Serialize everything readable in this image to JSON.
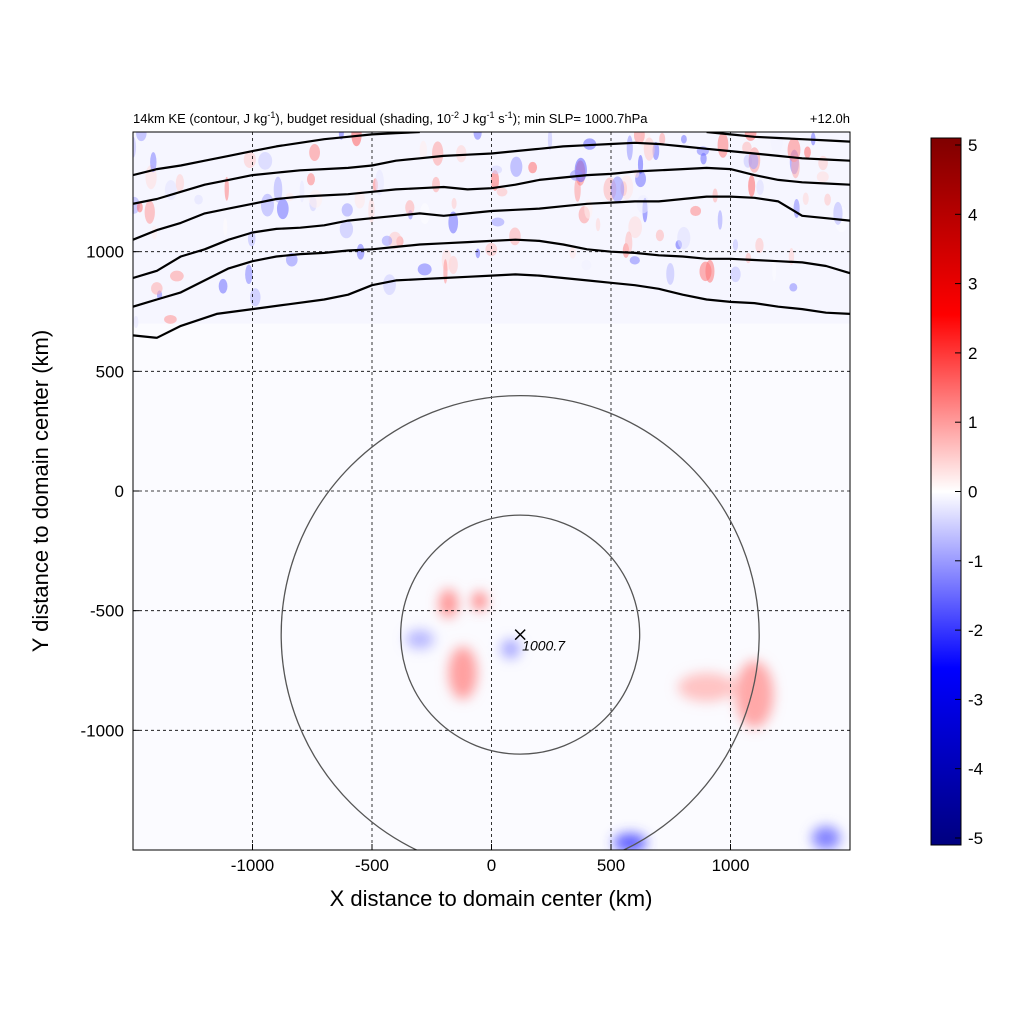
{
  "chart_data": {
    "type": "heatmap",
    "title_parts": {
      "p1": "14km KE (contour, J kg",
      "p1_sup": "-1",
      "p2": "), budget residual (shading, 10",
      "p2_sup": "-2",
      "p3": " J kg",
      "p3_sup": "-1",
      "p4": " s",
      "p4_sup": "-1",
      "p5": "); min SLP= 1000.7hPa"
    },
    "time_label": "+12.0h",
    "xlabel": "X distance to domain center (km)",
    "ylabel": "Y distance to domain center (km)",
    "xlim": [
      -1500,
      1500
    ],
    "ylim": [
      -1500,
      1500
    ],
    "xticks": [
      -1000,
      -500,
      0,
      500,
      1000
    ],
    "yticks": [
      -1000,
      -500,
      0,
      500,
      1000
    ],
    "grid": true,
    "colorbar": {
      "range": [
        -5,
        5
      ],
      "ticks": [
        5,
        4,
        3,
        2,
        1,
        0,
        -1,
        -2,
        -3,
        -4,
        -5
      ],
      "colormap": "blue-white-red",
      "colors": {
        "min": "#00007f",
        "low": "#0000ff",
        "mid": "#ffffff",
        "high": "#ff0000",
        "max": "#7f0000"
      }
    },
    "storm_center": {
      "x": 120,
      "y": -600,
      "min_slp_label": "1000.7"
    },
    "range_rings_km": [
      500,
      1000
    ],
    "ke_contours": [
      {
        "level": 1,
        "points": [
          [
            -1500,
            650
          ],
          [
            -1400,
            640
          ],
          [
            -1300,
            690
          ],
          [
            -1150,
            740
          ],
          [
            -1000,
            760
          ],
          [
            -850,
            780
          ],
          [
            -700,
            800
          ],
          [
            -600,
            820
          ],
          [
            -500,
            860
          ],
          [
            -400,
            880
          ],
          [
            -300,
            885
          ],
          [
            -200,
            890
          ],
          [
            -100,
            895
          ],
          [
            0,
            900
          ],
          [
            100,
            905
          ],
          [
            200,
            900
          ],
          [
            300,
            890
          ],
          [
            400,
            880
          ],
          [
            500,
            870
          ],
          [
            600,
            860
          ],
          [
            700,
            845
          ],
          [
            800,
            820
          ],
          [
            900,
            800
          ],
          [
            1000,
            790
          ],
          [
            1100,
            785
          ],
          [
            1200,
            770
          ],
          [
            1300,
            760
          ],
          [
            1400,
            745
          ],
          [
            1500,
            740
          ]
        ]
      },
      {
        "level": 2,
        "points": [
          [
            -1500,
            770
          ],
          [
            -1400,
            800
          ],
          [
            -1300,
            830
          ],
          [
            -1200,
            880
          ],
          [
            -1100,
            930
          ],
          [
            -1000,
            960
          ],
          [
            -900,
            980
          ],
          [
            -800,
            990
          ],
          [
            -700,
            995
          ],
          [
            -600,
            1005
          ],
          [
            -500,
            1010
          ],
          [
            -400,
            1020
          ],
          [
            -300,
            1030
          ],
          [
            -200,
            1035
          ],
          [
            -100,
            1040
          ],
          [
            0,
            1045
          ],
          [
            100,
            1050
          ],
          [
            200,
            1045
          ],
          [
            300,
            1030
          ],
          [
            400,
            1010
          ],
          [
            500,
            1000
          ],
          [
            600,
            995
          ],
          [
            700,
            985
          ],
          [
            800,
            980
          ],
          [
            900,
            970
          ],
          [
            1000,
            970
          ],
          [
            1100,
            965
          ],
          [
            1200,
            960
          ],
          [
            1300,
            955
          ],
          [
            1400,
            940
          ],
          [
            1500,
            910
          ]
        ]
      },
      {
        "level": 3,
        "points": [
          [
            -1500,
            890
          ],
          [
            -1400,
            920
          ],
          [
            -1300,
            980
          ],
          [
            -1200,
            1010
          ],
          [
            -1100,
            1050
          ],
          [
            -1000,
            1080
          ],
          [
            -900,
            1095
          ],
          [
            -800,
            1100
          ],
          [
            -700,
            1110
          ],
          [
            -600,
            1130
          ],
          [
            -500,
            1140
          ],
          [
            -400,
            1150
          ],
          [
            -300,
            1160
          ],
          [
            -200,
            1150
          ],
          [
            -100,
            1160
          ],
          [
            0,
            1170
          ],
          [
            100,
            1175
          ],
          [
            200,
            1180
          ],
          [
            300,
            1190
          ],
          [
            400,
            1200
          ],
          [
            500,
            1205
          ],
          [
            600,
            1210
          ],
          [
            700,
            1210
          ],
          [
            800,
            1220
          ],
          [
            900,
            1230
          ],
          [
            1000,
            1230
          ],
          [
            1100,
            1225
          ],
          [
            1200,
            1210
          ],
          [
            1300,
            1150
          ],
          [
            1400,
            1140
          ],
          [
            1500,
            1130
          ]
        ]
      },
      {
        "level": 4,
        "points": [
          [
            -1500,
            1050
          ],
          [
            -1400,
            1090
          ],
          [
            -1300,
            1120
          ],
          [
            -1200,
            1160
          ],
          [
            -1100,
            1180
          ],
          [
            -1000,
            1200
          ],
          [
            -900,
            1220
          ],
          [
            -800,
            1230
          ],
          [
            -700,
            1235
          ],
          [
            -600,
            1240
          ],
          [
            -500,
            1250
          ],
          [
            -400,
            1260
          ],
          [
            -300,
            1265
          ],
          [
            -200,
            1270
          ],
          [
            -100,
            1260
          ],
          [
            0,
            1265
          ],
          [
            100,
            1280
          ],
          [
            200,
            1300
          ],
          [
            300,
            1310
          ],
          [
            400,
            1320
          ],
          [
            500,
            1325
          ],
          [
            600,
            1335
          ],
          [
            700,
            1340
          ],
          [
            800,
            1345
          ],
          [
            900,
            1350
          ],
          [
            1000,
            1345
          ],
          [
            1100,
            1320
          ],
          [
            1200,
            1300
          ],
          [
            1300,
            1290
          ],
          [
            1400,
            1285
          ],
          [
            1500,
            1280
          ]
        ]
      },
      {
        "level": 5,
        "points": [
          [
            -1500,
            1200
          ],
          [
            -1400,
            1220
          ],
          [
            -1300,
            1250
          ],
          [
            -1200,
            1280
          ],
          [
            -1100,
            1300
          ],
          [
            -1000,
            1320
          ],
          [
            -900,
            1330
          ],
          [
            -800,
            1340
          ],
          [
            -700,
            1345
          ],
          [
            -600,
            1350
          ],
          [
            -500,
            1360
          ],
          [
            -400,
            1380
          ],
          [
            -300,
            1390
          ],
          [
            -200,
            1400
          ],
          [
            -100,
            1405
          ],
          [
            0,
            1410
          ],
          [
            100,
            1420
          ],
          [
            200,
            1430
          ],
          [
            300,
            1440
          ],
          [
            400,
            1445
          ],
          [
            500,
            1450
          ],
          [
            600,
            1455
          ],
          [
            700,
            1450
          ],
          [
            800,
            1440
          ],
          [
            900,
            1430
          ],
          [
            1000,
            1420
          ],
          [
            1100,
            1410
          ],
          [
            1200,
            1400
          ],
          [
            1300,
            1390
          ],
          [
            1400,
            1385
          ],
          [
            1500,
            1380
          ]
        ]
      },
      {
        "level": 6,
        "points": [
          [
            -1500,
            1320
          ],
          [
            -1400,
            1345
          ],
          [
            -1300,
            1360
          ],
          [
            -1200,
            1380
          ],
          [
            -1100,
            1400
          ],
          [
            -1000,
            1420
          ],
          [
            -900,
            1440
          ],
          [
            -800,
            1455
          ],
          [
            -700,
            1470
          ],
          [
            -600,
            1480
          ],
          [
            -500,
            1490
          ],
          [
            -400,
            1495
          ],
          [
            -300,
            1500
          ]
        ]
      },
      {
        "level": 6,
        "points": [
          [
            900,
            1500
          ],
          [
            1000,
            1490
          ],
          [
            1100,
            1480
          ],
          [
            1200,
            1475
          ],
          [
            1300,
            1470
          ],
          [
            1400,
            1465
          ],
          [
            1500,
            1460
          ]
        ]
      }
    ],
    "residual_patches": [
      {
        "x": -180,
        "y": -470,
        "value": 1.2,
        "rx": 40,
        "ry": 60
      },
      {
        "x": -50,
        "y": -460,
        "value": 1.4,
        "rx": 30,
        "ry": 40
      },
      {
        "x": -120,
        "y": -760,
        "value": 1.1,
        "rx": 60,
        "ry": 110
      },
      {
        "x": 80,
        "y": -660,
        "value": -1.0,
        "rx": 40,
        "ry": 40
      },
      {
        "x": -300,
        "y": -620,
        "value": -0.8,
        "rx": 60,
        "ry": 40
      },
      {
        "x": 1100,
        "y": -850,
        "value": 1.0,
        "rx": 80,
        "ry": 140
      },
      {
        "x": 900,
        "y": -820,
        "value": 0.7,
        "rx": 120,
        "ry": 60
      },
      {
        "x": 1400,
        "y": -1450,
        "value": -1.4,
        "rx": 60,
        "ry": 50
      },
      {
        "x": 580,
        "y": -1470,
        "value": -1.8,
        "rx": 70,
        "ry": 40
      }
    ]
  }
}
